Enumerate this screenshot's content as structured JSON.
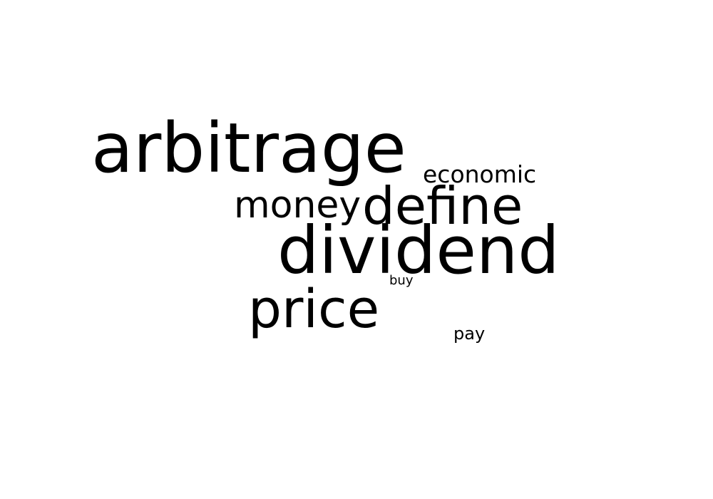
{
  "words": {
    "arbitrage": "arbitrage",
    "economic": "economic",
    "money": "money",
    "define": "define",
    "dividend": "dividend",
    "buy": "buy",
    "price": "price",
    "pay": "pay"
  },
  "colors": {
    "background": "#ffffff",
    "text": "#000000"
  }
}
